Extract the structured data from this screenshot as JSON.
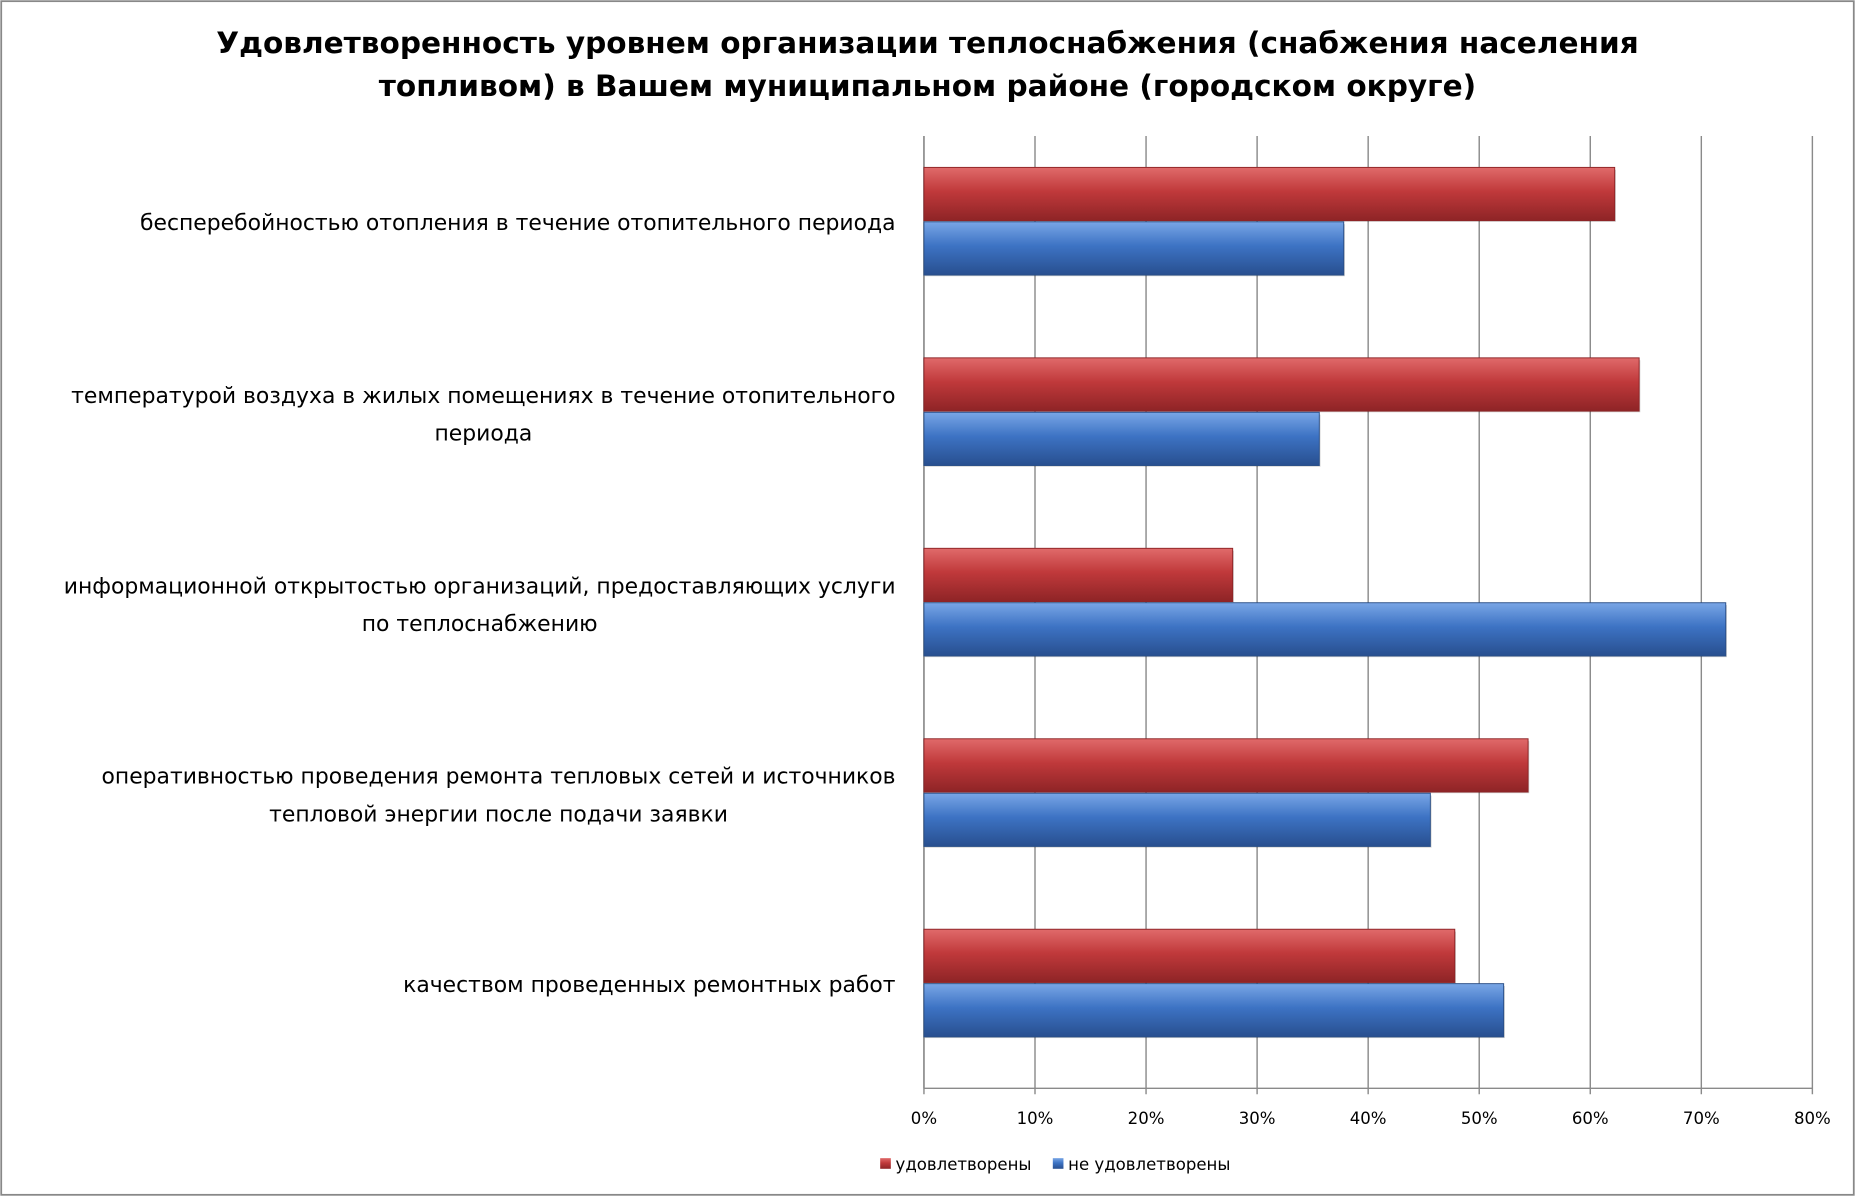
{
  "chart_data": {
    "type": "bar",
    "orientation": "horizontal",
    "title": [
      "Удовлетворенность уровнем организации теплоснабжения (снабжения населения",
      "топливом) в Вашем муниципальном районе (городском округе)"
    ],
    "categories": [
      [
        "бесперебойностью  отопления в течение отопительного периода"
      ],
      [
        "температурой  воздуха в жилых помещениях в течение отопительного",
        "периода"
      ],
      [
        "информационной открытостью  организаций, предоставляющих услуги",
        "по теплоснабжению"
      ],
      [
        "оперативностью проведения ремонта тепловых сетей и источников",
        "тепловой энергии после подачи заявки"
      ],
      [
        "качеством  проведенных ремонтных работ"
      ]
    ],
    "series": [
      {
        "name": "удовлетворены",
        "color": "#c0393b",
        "values": [
          62.2,
          64.4,
          27.8,
          54.4,
          47.8
        ]
      },
      {
        "name": "не удовлетворены",
        "color": "#3d73c4",
        "values": [
          37.8,
          35.6,
          72.2,
          45.6,
          52.2
        ]
      }
    ],
    "xlim": [
      0,
      80
    ],
    "xticks": [
      "0%",
      "10%",
      "20%",
      "30%",
      "40%",
      "50%",
      "60%",
      "70%",
      "80%"
    ],
    "grid": true,
    "legend": "bottom"
  }
}
